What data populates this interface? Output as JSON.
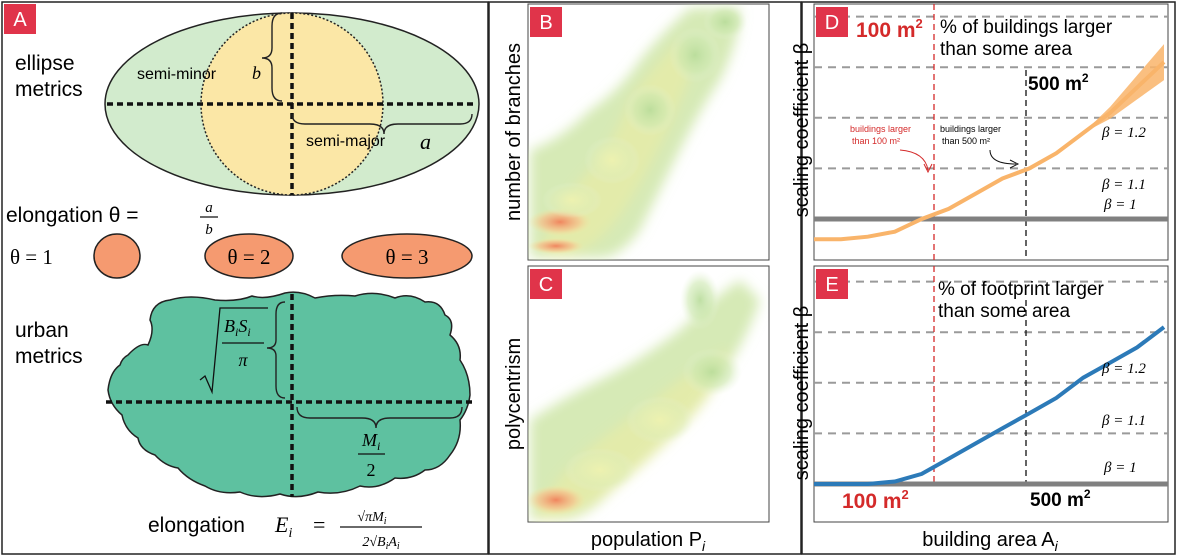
{
  "panel_a": {
    "letter": "A",
    "ellipse_metrics_line1": "ellipse",
    "ellipse_metrics_line2": "metrics",
    "semi_minor": "semi-minor",
    "b": "b",
    "semi_major": "semi-major",
    "a": "a",
    "elongation_label": "elongation θ =",
    "frac_num": "a",
    "frac_den": "b",
    "theta1": "θ = 1",
    "theta2": "θ = 2",
    "theta3": "θ = 3",
    "urban_metrics_line1": "urban",
    "urban_metrics_line2": "metrics",
    "sqrt_num": "B",
    "sqrt_num_sub": "i",
    "sqrt_num2": "S",
    "sqrt_num2_sub": "i",
    "sqrt_den": "π",
    "m_num": "M",
    "m_num_sub": "i",
    "m_den": "2",
    "elongation_E": "elongation",
    "E": "E",
    "E_sub": "i",
    "E_eq": "=",
    "E_num": "√πM",
    "E_num_sub": "i",
    "E_den": "2√B",
    "E_den_sub": "i",
    "E_den2": "A",
    "E_den2_sub": "i"
  },
  "panel_b": {
    "letter": "B",
    "ylabel": "number of branches"
  },
  "panel_c": {
    "letter": "C",
    "ylabel": "polycentrism"
  },
  "xlabel_bc": "population P",
  "xlabel_bc_sub": "i",
  "panel_d": {
    "letter": "D",
    "title_line1": "% of buildings larger",
    "title_line2": "than some area",
    "m100": "100 m",
    "m500": "500 m",
    "sup": "2",
    "ann_100_line1": "buildings larger",
    "ann_100_line2": "than 100 m²",
    "ann_500_line1": "buildings larger",
    "ann_500_line2": "than 500 m²",
    "beta1": "β = 1",
    "beta11": "β = 1.1",
    "beta12": "β = 1.2"
  },
  "panel_e": {
    "letter": "E",
    "title_line1": "% of footprint larger",
    "title_line2": "than some area",
    "m100": "100 m",
    "m500": "500 m",
    "sup": "2",
    "beta1": "β = 1",
    "beta11": "β = 1.1",
    "beta12": "β = 1.2"
  },
  "ylabel_de": "scaling coefficient β",
  "xlabel_de": "building area A",
  "xlabel_de_sub": "i",
  "colors": {
    "badge": "#e0344a",
    "ellipse_green": "#d2ebcd",
    "circle_yellow": "#fbe7a6",
    "orange": "#f59a70",
    "urban_green": "#5ec1a0",
    "curve_d": "#f9b46a",
    "curve_e": "#2c7ab8",
    "red_text": "#d42a2a"
  },
  "chart_data": [
    {
      "type": "line",
      "panel": "D",
      "title": "% of buildings larger than some area",
      "xlabel": "building area A_i",
      "ylabel": "scaling coefficient β",
      "series": [
        {
          "values": [
            0.96,
            0.96,
            0.965,
            0.975,
            1.0,
            1.02,
            1.05,
            1.08,
            1.1,
            1.13,
            1.17,
            1.21,
            1.26,
            1.31
          ]
        }
      ],
      "reference_lines": [
        1.0,
        1.1,
        1.2
      ],
      "vlines": [
        "100 m²",
        "500 m²"
      ]
    },
    {
      "type": "line",
      "panel": "E",
      "title": "% of footprint larger than some area",
      "xlabel": "building area A_i",
      "ylabel": "scaling coefficient β",
      "series": [
        {
          "values": [
            1.0,
            1.0,
            1.0,
            1.005,
            1.02,
            1.05,
            1.08,
            1.11,
            1.14,
            1.17,
            1.21,
            1.24,
            1.27,
            1.31
          ]
        }
      ],
      "reference_lines": [
        1.0,
        1.1,
        1.2
      ],
      "vlines": [
        "100 m²",
        "500 m²"
      ]
    }
  ]
}
